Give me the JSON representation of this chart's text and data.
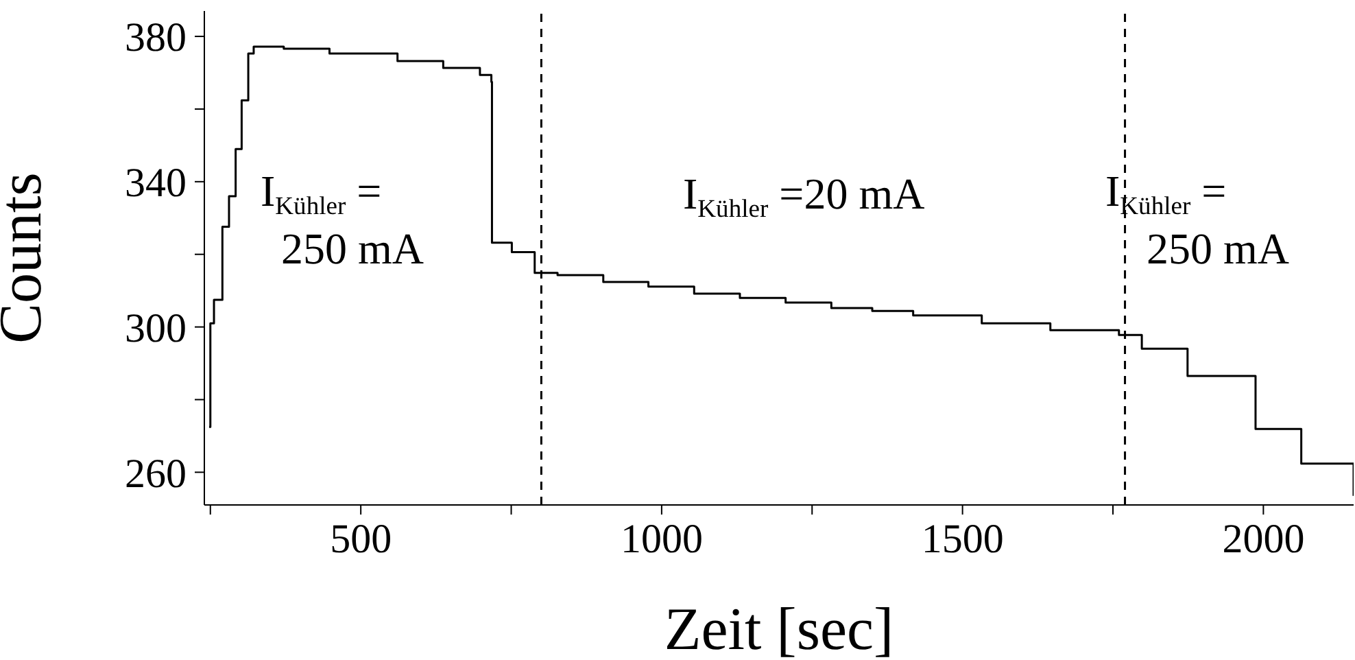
{
  "chart_data": {
    "type": "step",
    "xlabel": "Zeit [sec]",
    "ylabel": "Counts",
    "x": [
      248,
      250,
      256,
      270,
      281,
      292,
      302,
      313,
      322,
      372,
      448,
      561,
      637,
      698,
      717,
      718,
      751,
      789,
      827,
      903,
      978,
      1054,
      1130,
      1206,
      1282,
      1350,
      1418,
      1532,
      1646,
      1760,
      1798,
      1874,
      1987,
      2063,
      2150
    ],
    "series": [
      {
        "color": "#000000",
        "values": [
          272.5,
          301,
          307.5,
          327.6,
          336,
          349,
          362.4,
          375.3,
          377.2,
          376.6,
          375.3,
          373.2,
          371.3,
          369.4,
          367.5,
          323.2,
          320.6,
          314.9,
          314.3,
          312.4,
          311.1,
          309.2,
          308,
          306.7,
          305.2,
          304.4,
          303.2,
          301,
          299.1,
          297.8,
          294,
          286.5,
          271.9,
          262.4,
          253.5
        ]
      }
    ],
    "xlim": [
      240,
      2150
    ],
    "xticks": [
      {
        "value": 250,
        "label": null
      },
      500,
      {
        "value": 750,
        "label": null
      },
      1000,
      {
        "value": 1250,
        "label": null
      },
      1500,
      {
        "value": 1750,
        "label": null
      },
      2000
    ],
    "ylim": [
      251,
      387
    ],
    "yticks": [
      260,
      {
        "value": 280,
        "label": null
      },
      300,
      {
        "value": 320,
        "label": null
      },
      340,
      {
        "value": 360,
        "label": null
      },
      380
    ],
    "ref_lines": [
      {
        "axis": "x",
        "value": 800,
        "color": "#000000",
        "line_style": "dashed"
      },
      {
        "axis": "x",
        "value": 1770,
        "color": "#000000",
        "line_style": "dashed"
      }
    ],
    "annotations": [
      "I$_{Kühler}$=\n250 mA",
      "I$_{Kühler}$=20 mA",
      "I$_{Kühler}$=\n250 mA"
    ],
    "grid": false,
    "legend": false,
    "marker": "none",
    "line_style": "solid"
  }
}
